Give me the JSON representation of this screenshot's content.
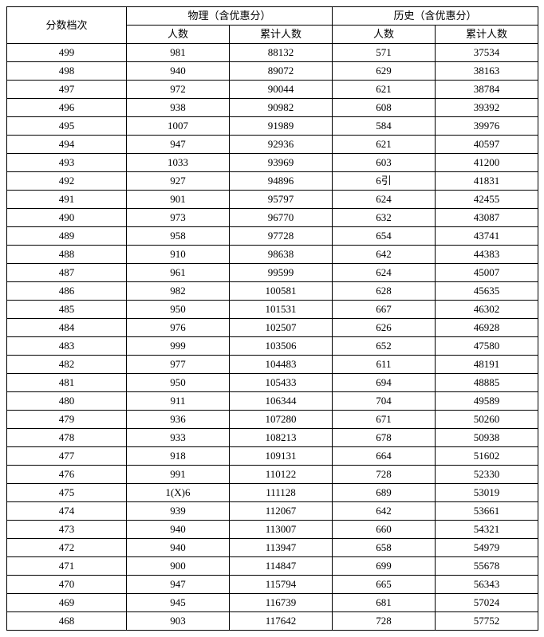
{
  "headers": {
    "score": "分数档次",
    "physics_group": "物理（含优惠分）",
    "history_group": "历史（含优惠分）",
    "count": "人数",
    "cumulative": "累计人数"
  },
  "columns": [
    "score",
    "p_count",
    "p_cum",
    "h_count",
    "h_cum"
  ],
  "rows": [
    [
      "499",
      "981",
      "88132",
      "571",
      "37534"
    ],
    [
      "498",
      "940",
      "89072",
      "629",
      "38163"
    ],
    [
      "497",
      "972",
      "90044",
      "621",
      "38784"
    ],
    [
      "496",
      "938",
      "90982",
      "608",
      "39392"
    ],
    [
      "495",
      "1007",
      "91989",
      "584",
      "39976"
    ],
    [
      "494",
      "947",
      "92936",
      "621",
      "40597"
    ],
    [
      "493",
      "1033",
      "93969",
      "603",
      "41200"
    ],
    [
      "492",
      "927",
      "94896",
      "6引",
      "41831"
    ],
    [
      "491",
      "901",
      "95797",
      "624",
      "42455"
    ],
    [
      "490",
      "973",
      "96770",
      "632",
      "43087"
    ],
    [
      "489",
      "958",
      "97728",
      "654",
      "43741"
    ],
    [
      "488",
      "910",
      "98638",
      "642",
      "44383"
    ],
    [
      "487",
      "961",
      "99599",
      "624",
      "45007"
    ],
    [
      "486",
      "982",
      "100581",
      "628",
      "45635"
    ],
    [
      "485",
      "950",
      "101531",
      "667",
      "46302"
    ],
    [
      "484",
      "976",
      "102507",
      "626",
      "46928"
    ],
    [
      "483",
      "999",
      "103506",
      "652",
      "47580"
    ],
    [
      "482",
      "977",
      "104483",
      "611",
      "48191"
    ],
    [
      "481",
      "950",
      "105433",
      "694",
      "48885"
    ],
    [
      "480",
      "911",
      "106344",
      "704",
      "49589"
    ],
    [
      "479",
      "936",
      "107280",
      "671",
      "50260"
    ],
    [
      "478",
      "933",
      "108213",
      "678",
      "50938"
    ],
    [
      "477",
      "918",
      "109131",
      "664",
      "51602"
    ],
    [
      "476",
      "991",
      "110122",
      "728",
      "52330"
    ],
    [
      "475",
      "1(X)6",
      "111128",
      "689",
      "53019"
    ],
    [
      "474",
      "939",
      "112067",
      "642",
      "53661"
    ],
    [
      "473",
      "940",
      "113007",
      "660",
      "54321"
    ],
    [
      "472",
      "940",
      "113947",
      "658",
      "54979"
    ],
    [
      "471",
      "900",
      "114847",
      "699",
      "55678"
    ],
    [
      "470",
      "947",
      "115794",
      "665",
      "56343"
    ],
    [
      "469",
      "945",
      "116739",
      "681",
      "57024"
    ],
    [
      "468",
      "903",
      "117642",
      "728",
      "57752"
    ]
  ]
}
